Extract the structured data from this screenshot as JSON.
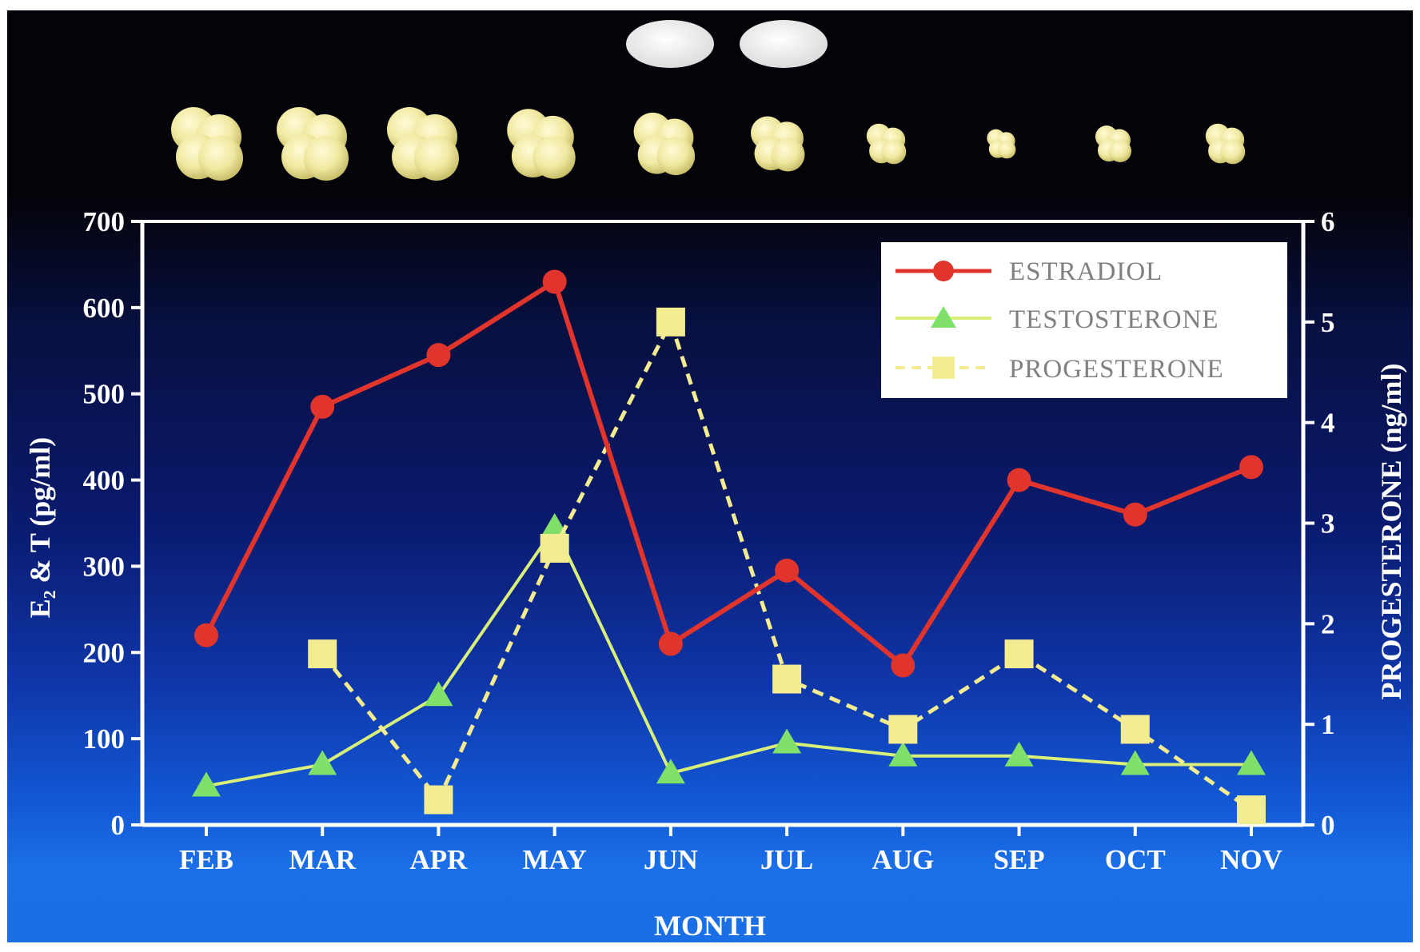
{
  "chart_data": {
    "type": "line",
    "categories": [
      "FEB",
      "MAR",
      "APR",
      "MAY",
      "JUN",
      "JUL",
      "AUG",
      "SEP",
      "OCT",
      "NOV"
    ],
    "xlabel": "MONTH",
    "ylabel_left": "E₂ & T (pg/ml)",
    "ylabel_right": "PROGESTERONE (ng/ml)",
    "ylim_left": [
      0,
      700
    ],
    "ylim_right": [
      0,
      6
    ],
    "yticks_left": [
      "0",
      "100",
      "200",
      "300",
      "400",
      "500",
      "600",
      "700"
    ],
    "yticks_right": [
      "0",
      "1",
      "2",
      "3",
      "4",
      "5",
      "6"
    ],
    "legend_position": "top-right",
    "series": [
      {
        "name": "ESTRADIOL",
        "axis": "left",
        "color": "#e0342c",
        "marker": "circle",
        "values": [
          220,
          485,
          545,
          630,
          210,
          295,
          185,
          400,
          360,
          415
        ]
      },
      {
        "name": "TESTOSTERONE",
        "axis": "left",
        "color": "#d8ef7a",
        "marker": "triangle",
        "values": [
          45,
          70,
          150,
          345,
          60,
          95,
          80,
          80,
          70,
          70
        ]
      },
      {
        "name": "PROGESTERONE",
        "axis": "right",
        "color": "#f4ec90",
        "marker": "square",
        "linestyle": "dashed",
        "values": [
          null,
          1.7,
          0.25,
          2.75,
          5.0,
          1.45,
          0.95,
          1.7,
          0.95,
          0.15
        ]
      }
    ]
  },
  "images": {
    "ovary_photo_row": "ovary-photographs",
    "egg_photos": "eggs-photographs"
  }
}
